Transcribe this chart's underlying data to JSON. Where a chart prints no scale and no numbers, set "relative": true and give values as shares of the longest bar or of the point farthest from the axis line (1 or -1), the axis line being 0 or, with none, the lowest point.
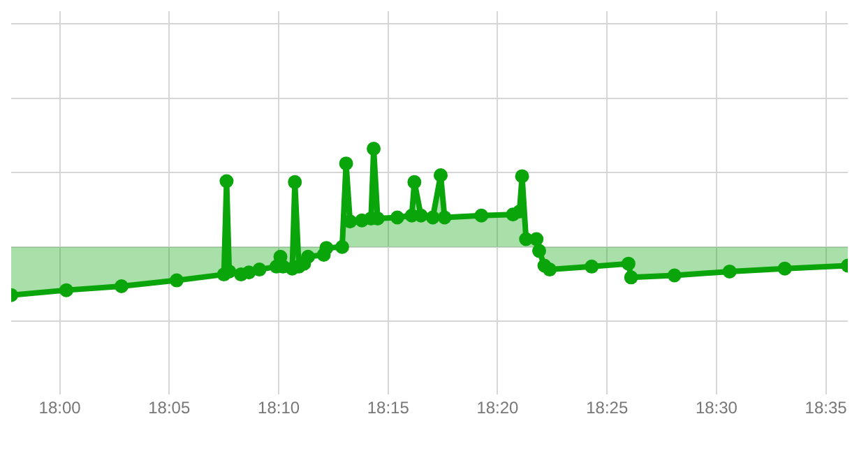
{
  "chart_data": {
    "type": "area",
    "relative": true,
    "marker": "circle",
    "grid": true,
    "tick_labels": "x",
    "legend": false,
    "x": [
      17.963,
      18.005,
      18.047,
      18.089,
      18.125,
      18.127,
      18.129,
      18.138,
      18.144,
      18.152,
      18.165,
      18.168,
      18.17,
      18.177,
      18.179,
      18.182,
      18.186,
      18.189,
      18.201,
      18.203,
      18.215,
      18.218,
      18.221,
      18.23,
      18.237,
      18.239,
      18.242,
      18.257,
      18.268,
      18.27,
      18.275,
      18.284,
      18.29,
      18.293,
      18.321,
      18.345,
      18.35,
      18.352,
      18.355,
      18.363,
      18.365,
      18.369,
      18.373,
      18.405,
      18.433,
      18.435,
      18.468,
      18.51,
      18.552,
      18.6
    ],
    "series": [
      {
        "color": "#0aa50a",
        "values": [
          -0.49,
          -0.44,
          -0.4,
          -0.34,
          -0.28,
          0.67,
          -0.25,
          -0.28,
          -0.26,
          -0.23,
          -0.2,
          -0.1,
          -0.2,
          -0.22,
          0.66,
          -0.2,
          -0.17,
          -0.1,
          -0.08,
          -0.01,
          0,
          0.85,
          0.26,
          0.27,
          0.29,
          1,
          0.29,
          0.3,
          0.32,
          0.66,
          0.32,
          0.3,
          0.73,
          0.3,
          0.32,
          0.33,
          0.36,
          0.72,
          0.08,
          0.08,
          -0.04,
          -0.19,
          -0.23,
          -0.2,
          -0.17,
          -0.31,
          -0.29,
          -0.25,
          -0.22,
          -0.19
        ]
      }
    ],
    "xlim": [
      17.963,
      18.6
    ],
    "xticks": [
      {
        "value": 18,
        "label": "18:00"
      },
      {
        "value": 18.0833,
        "label": "18:05"
      },
      {
        "value": 18.1667,
        "label": "18:10"
      },
      {
        "value": 18.25,
        "label": "18:15"
      },
      {
        "value": 18.3333,
        "label": "18:20"
      },
      {
        "value": 18.4167,
        "label": "18:25"
      },
      {
        "value": 18.5,
        "label": "18:30"
      },
      {
        "value": 18.5833,
        "label": "18:35"
      }
    ]
  }
}
